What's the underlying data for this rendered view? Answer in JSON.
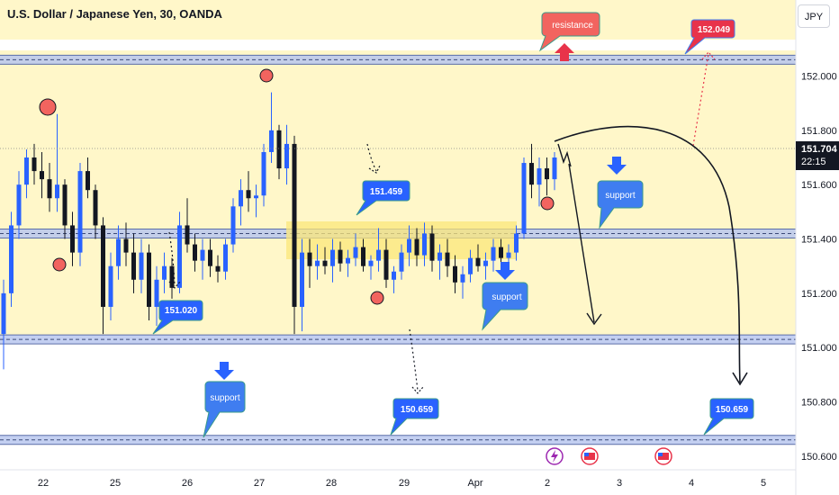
{
  "header": {
    "title": "U.S. Dollar / Japanese Yen, 30, OANDA",
    "currency_button": "JPY"
  },
  "colors": {
    "background_band": "#fff7c9",
    "candle_up": "#2962ff",
    "candle_down": "#131722",
    "level_band": "#b8c7ee",
    "level_line": "#5b6ea8",
    "callout_blue": "#3f7df0",
    "callout_red": "#f2645f",
    "consolidation": "#fbe77a",
    "swing_marker": "#f2645f",
    "arrow_blue": "#2962ff",
    "arrow_red": "#e8334a"
  },
  "chart_data": {
    "type": "candlestick",
    "symbol": "U.S. Dollar / Japanese Yen, 30, OANDA",
    "ylim": [
      150.55,
      152.28
    ],
    "y_ticks": [
      {
        "value": 152.0,
        "label": "152.000"
      },
      {
        "value": 151.8,
        "label": "151.800"
      },
      {
        "value": 151.6,
        "label": "151.600"
      },
      {
        "value": 151.4,
        "label": "151.400"
      },
      {
        "value": 151.2,
        "label": "151.200"
      },
      {
        "value": 151.0,
        "label": "151.000"
      },
      {
        "value": 150.8,
        "label": "150.800"
      },
      {
        "value": 150.6,
        "label": "150.600"
      }
    ],
    "x_ticks": [
      "22",
      "25",
      "26",
      "27",
      "28",
      "29",
      "Apr",
      "2",
      "3",
      "4",
      "5"
    ],
    "last_price": {
      "value": 151.704,
      "label": "151.704",
      "countdown": "22:15"
    },
    "levels": [
      {
        "name": "resistance",
        "value": 152.06
      },
      {
        "name": "support-upper",
        "value": 151.42
      },
      {
        "name": "support-mid",
        "value": 151.03
      },
      {
        "name": "support-lower",
        "value": 150.66
      }
    ],
    "price_tags": [
      {
        "label": "152.049",
        "value": 152.049,
        "style": "red"
      },
      {
        "label": "151.459",
        "value": 151.459,
        "style": "blue"
      },
      {
        "label": "151.020",
        "value": 151.02,
        "style": "blue"
      },
      {
        "label": "150.659",
        "value": 150.659,
        "style": "blue"
      },
      {
        "label": "150.659",
        "value": 150.659,
        "style": "blue"
      }
    ],
    "callouts": [
      "resistance",
      "support",
      "support",
      "support"
    ],
    "candles": [
      {
        "o": 151.05,
        "h": 151.25,
        "l": 150.92,
        "c": 151.2
      },
      {
        "o": 151.2,
        "h": 151.5,
        "l": 151.15,
        "c": 151.45
      },
      {
        "o": 151.45,
        "h": 151.65,
        "l": 151.4,
        "c": 151.6
      },
      {
        "o": 151.6,
        "h": 151.73,
        "l": 151.55,
        "c": 151.7
      },
      {
        "o": 151.7,
        "h": 151.75,
        "l": 151.6,
        "c": 151.65
      },
      {
        "o": 151.65,
        "h": 151.72,
        "l": 151.55,
        "c": 151.62
      },
      {
        "o": 151.62,
        "h": 151.68,
        "l": 151.5,
        "c": 151.55
      },
      {
        "o": 151.55,
        "h": 151.86,
        "l": 151.5,
        "c": 151.6
      },
      {
        "o": 151.6,
        "h": 151.62,
        "l": 151.4,
        "c": 151.45
      },
      {
        "o": 151.45,
        "h": 151.5,
        "l": 151.3,
        "c": 151.35
      },
      {
        "o": 151.35,
        "h": 151.68,
        "l": 151.3,
        "c": 151.65
      },
      {
        "o": 151.65,
        "h": 151.7,
        "l": 151.55,
        "c": 151.58
      },
      {
        "o": 151.58,
        "h": 151.6,
        "l": 151.4,
        "c": 151.45
      },
      {
        "o": 151.45,
        "h": 151.48,
        "l": 151.05,
        "c": 151.15
      },
      {
        "o": 151.15,
        "h": 151.35,
        "l": 151.1,
        "c": 151.3
      },
      {
        "o": 151.3,
        "h": 151.45,
        "l": 151.25,
        "c": 151.4
      },
      {
        "o": 151.4,
        "h": 151.46,
        "l": 151.3,
        "c": 151.35
      },
      {
        "o": 151.35,
        "h": 151.42,
        "l": 151.2,
        "c": 151.25
      },
      {
        "o": 151.25,
        "h": 151.4,
        "l": 151.2,
        "c": 151.35
      },
      {
        "o": 151.35,
        "h": 151.38,
        "l": 151.1,
        "c": 151.15
      },
      {
        "o": 151.15,
        "h": 151.3,
        "l": 151.08,
        "c": 151.25
      },
      {
        "o": 151.25,
        "h": 151.35,
        "l": 151.2,
        "c": 151.3
      },
      {
        "o": 151.3,
        "h": 151.33,
        "l": 151.18,
        "c": 151.22
      },
      {
        "o": 151.22,
        "h": 151.5,
        "l": 151.2,
        "c": 151.45
      },
      {
        "o": 151.45,
        "h": 151.55,
        "l": 151.35,
        "c": 151.38
      },
      {
        "o": 151.38,
        "h": 151.42,
        "l": 151.28,
        "c": 151.32
      },
      {
        "o": 151.32,
        "h": 151.4,
        "l": 151.25,
        "c": 151.36
      },
      {
        "o": 151.36,
        "h": 151.4,
        "l": 151.26,
        "c": 151.3
      },
      {
        "o": 151.3,
        "h": 151.34,
        "l": 151.24,
        "c": 151.28
      },
      {
        "o": 151.28,
        "h": 151.4,
        "l": 151.25,
        "c": 151.38
      },
      {
        "o": 151.38,
        "h": 151.55,
        "l": 151.35,
        "c": 151.52
      },
      {
        "o": 151.52,
        "h": 151.62,
        "l": 151.45,
        "c": 151.58
      },
      {
        "o": 151.58,
        "h": 151.65,
        "l": 151.5,
        "c": 151.55
      },
      {
        "o": 151.55,
        "h": 151.6,
        "l": 151.48,
        "c": 151.56
      },
      {
        "o": 151.56,
        "h": 151.75,
        "l": 151.52,
        "c": 151.72
      },
      {
        "o": 151.72,
        "h": 151.94,
        "l": 151.68,
        "c": 151.8
      },
      {
        "o": 151.8,
        "h": 151.82,
        "l": 151.62,
        "c": 151.66
      },
      {
        "o": 151.66,
        "h": 151.82,
        "l": 151.6,
        "c": 151.75
      },
      {
        "o": 151.75,
        "h": 151.78,
        "l": 151.05,
        "c": 151.15
      },
      {
        "o": 151.15,
        "h": 151.4,
        "l": 151.06,
        "c": 151.35
      },
      {
        "o": 151.35,
        "h": 151.4,
        "l": 151.22,
        "c": 151.3
      },
      {
        "o": 151.3,
        "h": 151.38,
        "l": 151.25,
        "c": 151.32
      },
      {
        "o": 151.32,
        "h": 151.37,
        "l": 151.27,
        "c": 151.3
      },
      {
        "o": 151.3,
        "h": 151.4,
        "l": 151.24,
        "c": 151.36
      },
      {
        "o": 151.36,
        "h": 151.39,
        "l": 151.28,
        "c": 151.31
      },
      {
        "o": 151.31,
        "h": 151.36,
        "l": 151.26,
        "c": 151.33
      },
      {
        "o": 151.33,
        "h": 151.42,
        "l": 151.3,
        "c": 151.37
      },
      {
        "o": 151.37,
        "h": 151.4,
        "l": 151.28,
        "c": 151.3
      },
      {
        "o": 151.3,
        "h": 151.34,
        "l": 151.25,
        "c": 151.32
      },
      {
        "o": 151.32,
        "h": 151.44,
        "l": 151.28,
        "c": 151.36
      },
      {
        "o": 151.36,
        "h": 151.4,
        "l": 151.22,
        "c": 151.25
      },
      {
        "o": 151.25,
        "h": 151.3,
        "l": 151.2,
        "c": 151.28
      },
      {
        "o": 151.28,
        "h": 151.38,
        "l": 151.25,
        "c": 151.35
      },
      {
        "o": 151.35,
        "h": 151.45,
        "l": 151.3,
        "c": 151.4
      },
      {
        "o": 151.4,
        "h": 151.44,
        "l": 151.3,
        "c": 151.34
      },
      {
        "o": 151.34,
        "h": 151.46,
        "l": 151.3,
        "c": 151.42
      },
      {
        "o": 151.42,
        "h": 151.45,
        "l": 151.28,
        "c": 151.32
      },
      {
        "o": 151.32,
        "h": 151.38,
        "l": 151.25,
        "c": 151.35
      },
      {
        "o": 151.35,
        "h": 151.4,
        "l": 151.26,
        "c": 151.3
      },
      {
        "o": 151.3,
        "h": 151.34,
        "l": 151.2,
        "c": 151.24
      },
      {
        "o": 151.24,
        "h": 151.3,
        "l": 151.18,
        "c": 151.27
      },
      {
        "o": 151.27,
        "h": 151.36,
        "l": 151.24,
        "c": 151.33
      },
      {
        "o": 151.33,
        "h": 151.38,
        "l": 151.28,
        "c": 151.3
      },
      {
        "o": 151.3,
        "h": 151.35,
        "l": 151.25,
        "c": 151.32
      },
      {
        "o": 151.32,
        "h": 151.4,
        "l": 151.28,
        "c": 151.37
      },
      {
        "o": 151.37,
        "h": 151.4,
        "l": 151.3,
        "c": 151.33
      },
      {
        "o": 151.33,
        "h": 151.38,
        "l": 151.28,
        "c": 151.35
      },
      {
        "o": 151.35,
        "h": 151.45,
        "l": 151.32,
        "c": 151.42
      },
      {
        "o": 151.42,
        "h": 151.7,
        "l": 151.4,
        "c": 151.68
      },
      {
        "o": 151.68,
        "h": 151.75,
        "l": 151.55,
        "c": 151.6
      },
      {
        "o": 151.6,
        "h": 151.7,
        "l": 151.52,
        "c": 151.66
      },
      {
        "o": 151.66,
        "h": 151.7,
        "l": 151.56,
        "c": 151.62
      },
      {
        "o": 151.62,
        "h": 151.72,
        "l": 151.58,
        "c": 151.7
      }
    ]
  }
}
